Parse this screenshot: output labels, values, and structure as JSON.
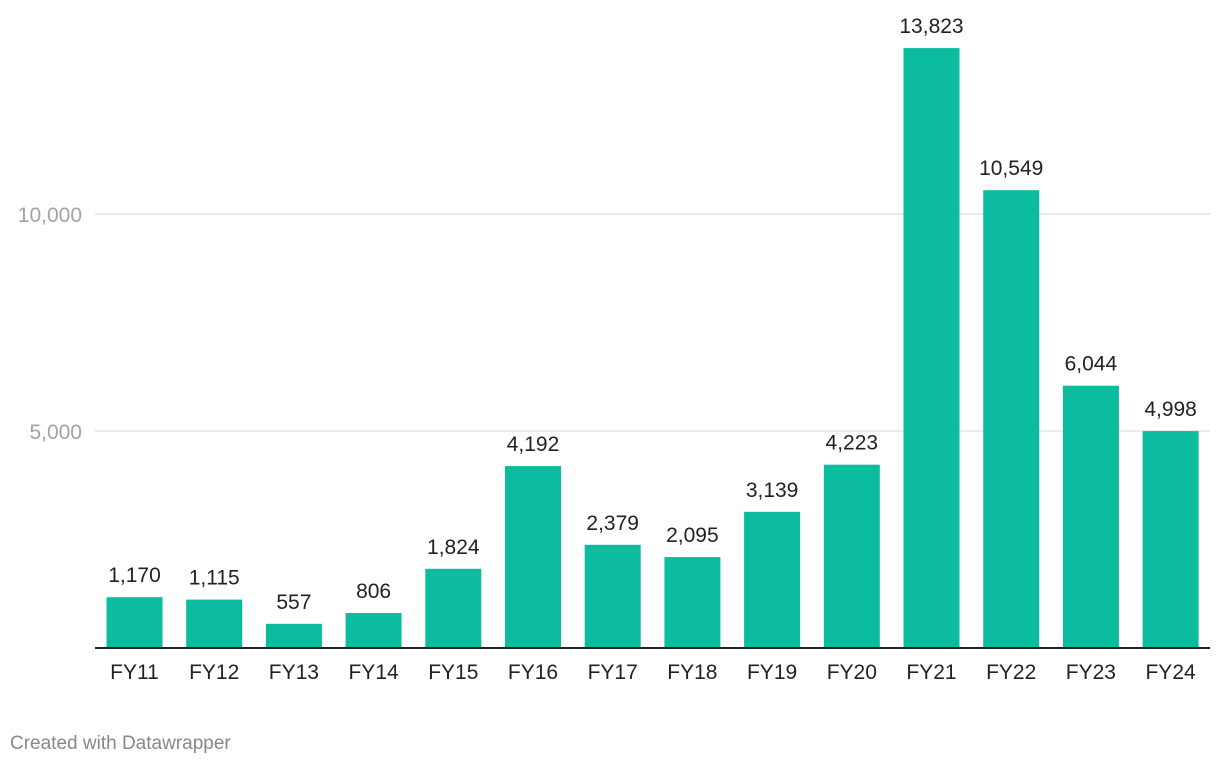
{
  "chart_data": {
    "type": "bar",
    "title": "",
    "xlabel": "",
    "ylabel": "",
    "categories": [
      "FY11",
      "FY12",
      "FY13",
      "FY14",
      "FY15",
      "FY16",
      "FY17",
      "FY18",
      "FY19",
      "FY20",
      "FY21",
      "FY22",
      "FY23",
      "FY24"
    ],
    "values": [
      1170,
      1115,
      557,
      806,
      1824,
      4192,
      2379,
      2095,
      3139,
      4223,
      13823,
      10549,
      6044,
      4998
    ],
    "value_labels": [
      "1,170",
      "1,115",
      "557",
      "806",
      "1,824",
      "4,192",
      "2,379",
      "2,095",
      "3,139",
      "4,223",
      "13,823",
      "10,549",
      "6,044",
      "4,998"
    ],
    "y_ticks": [
      5000,
      10000
    ],
    "y_tick_labels": [
      "5,000",
      "10,000"
    ],
    "ylim": [
      0,
      15000
    ],
    "grid": true,
    "legend": "none",
    "colors": {
      "bar": "#0bbc9f",
      "gridline": "#e3e3e3",
      "baseline": "#222222",
      "tick_text": "#a3a3a3",
      "label_text": "#222222"
    }
  },
  "footer": {
    "credit": "Created with Datawrapper"
  }
}
